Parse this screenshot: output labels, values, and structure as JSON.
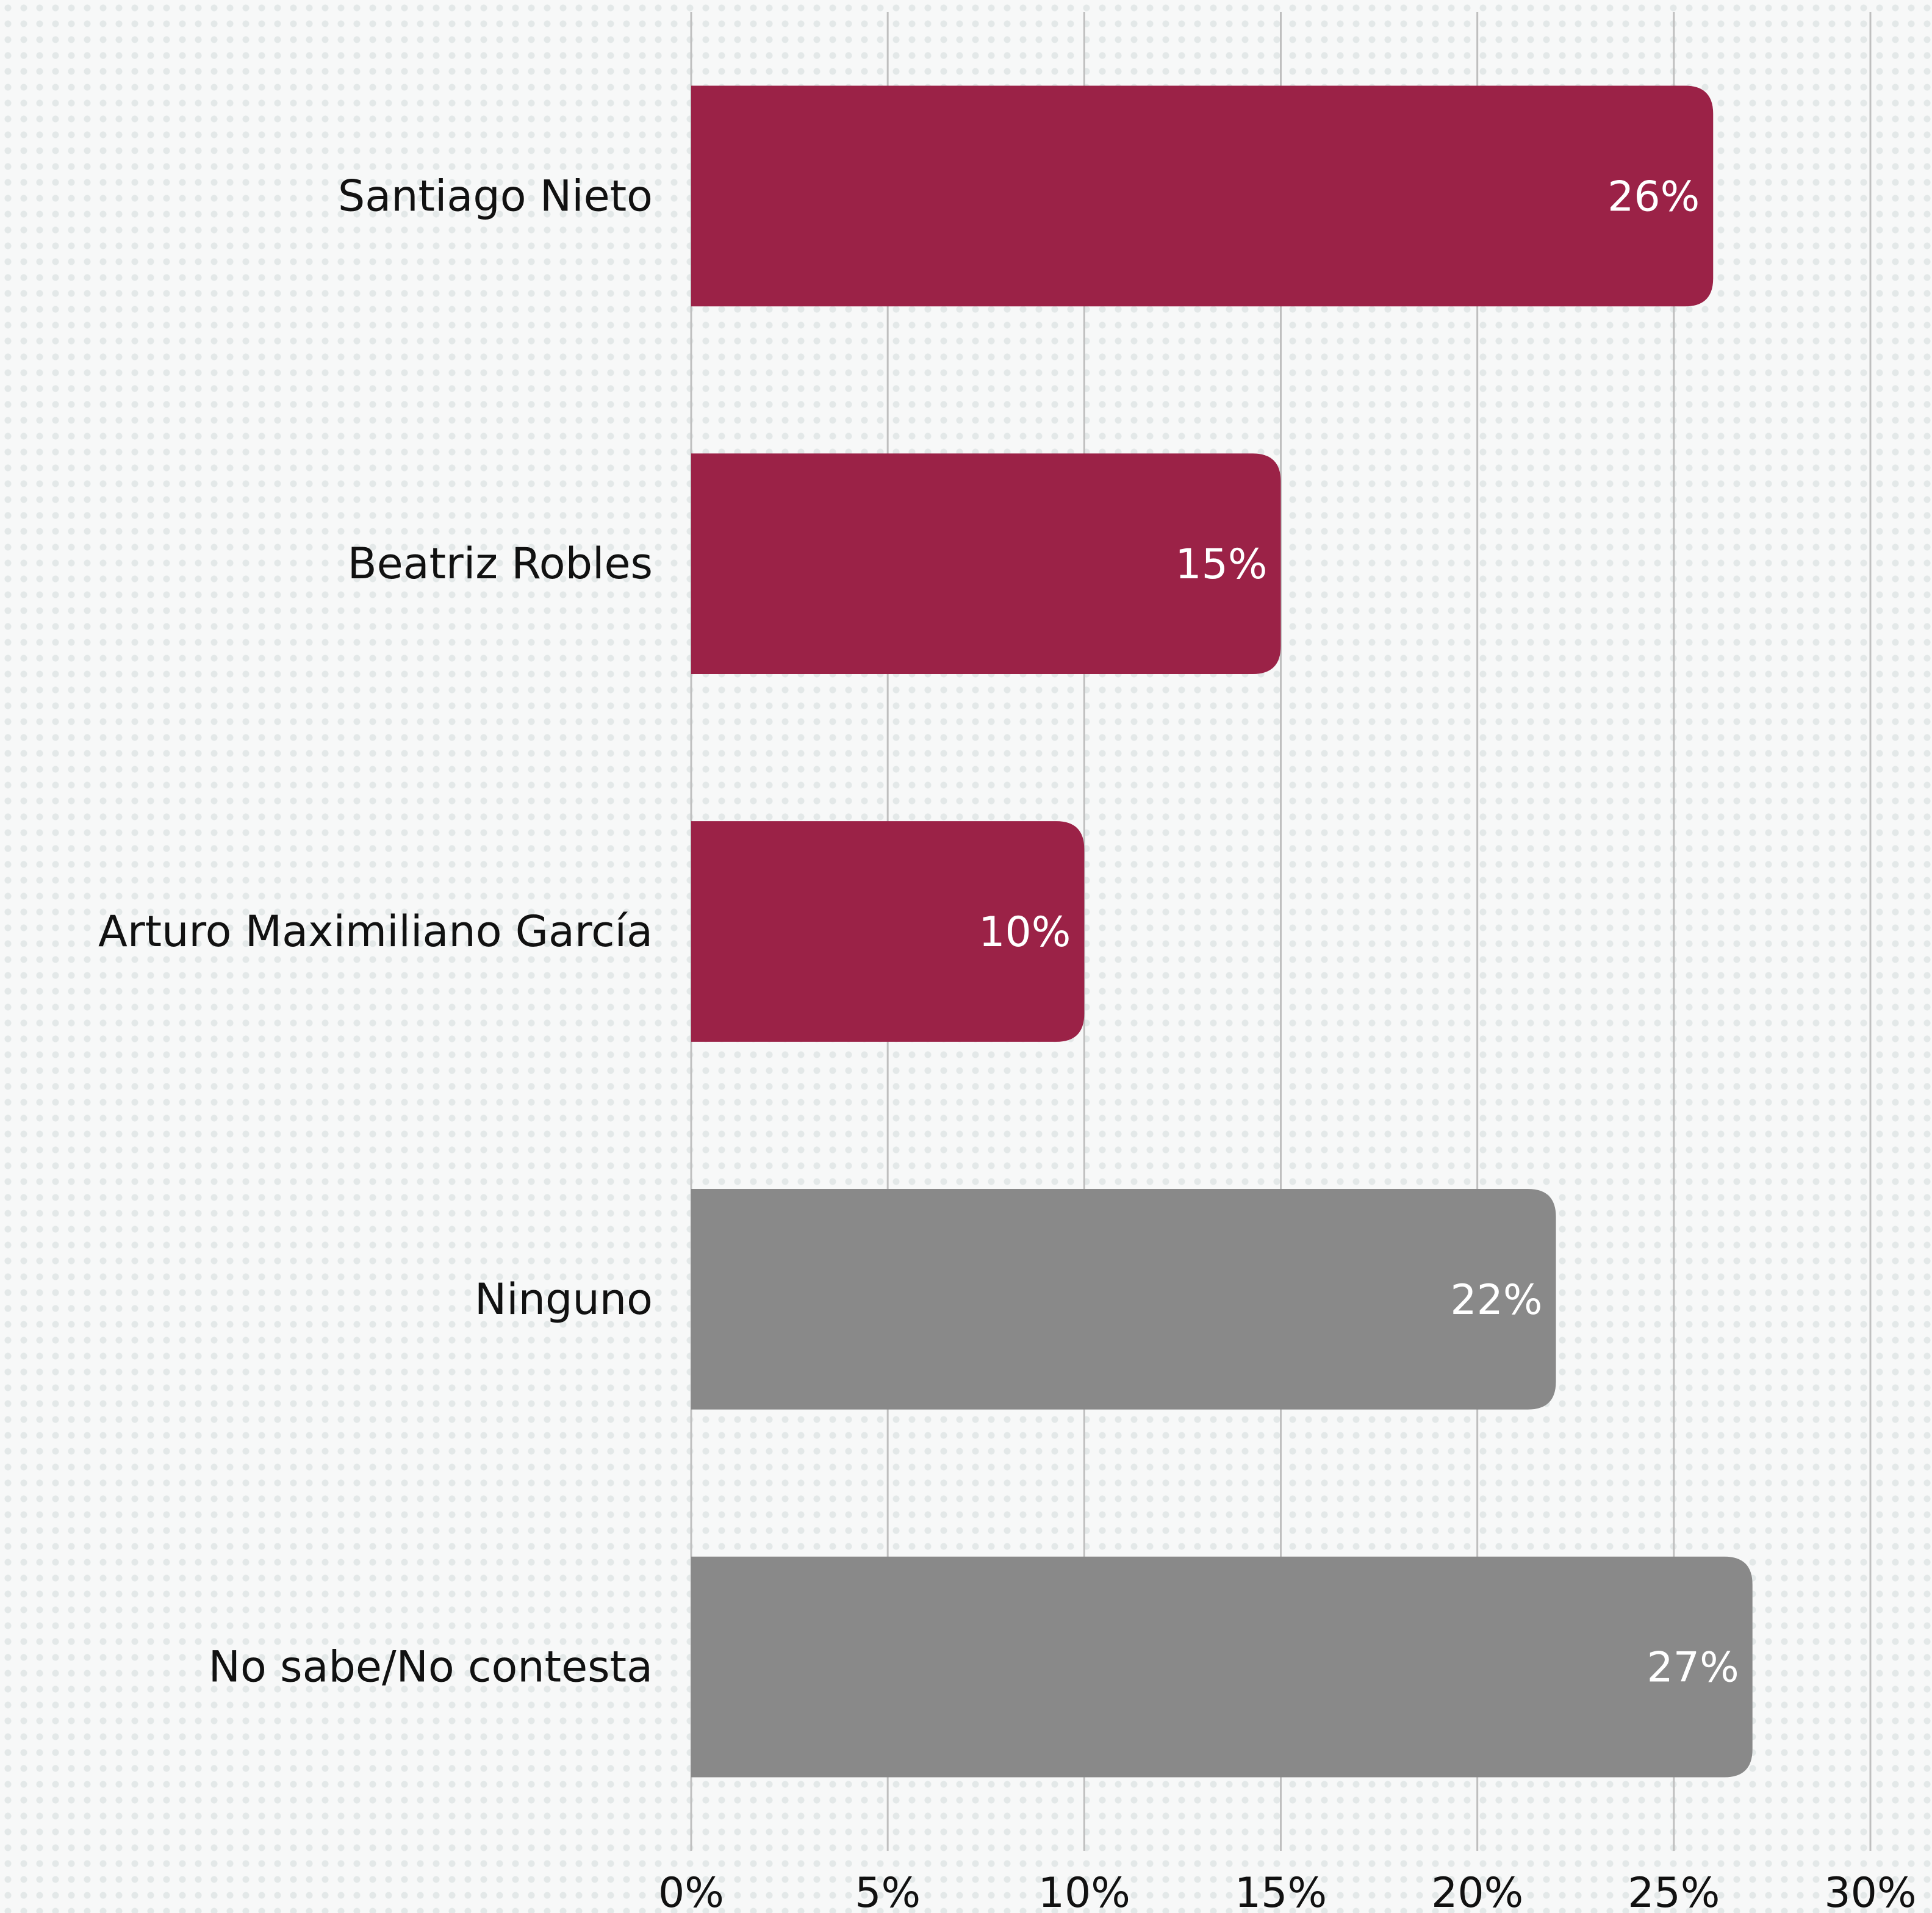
{
  "chart_data": {
    "type": "bar",
    "orientation": "horizontal",
    "title": "",
    "xlabel": "",
    "ylabel": "",
    "categories": [
      "Santiago Nieto",
      "Beatriz Robles",
      "Arturo Maximiliano García",
      "Ninguno",
      "No sabe/No contesta"
    ],
    "values": [
      26,
      15,
      10,
      22,
      27
    ],
    "value_labels": [
      "26%",
      "15%",
      "10%",
      "22%",
      "27%"
    ],
    "bar_colors": [
      "#9b2247",
      "#9b2247",
      "#9b2247",
      "#898989",
      "#898989"
    ],
    "xlim": [
      0,
      30
    ],
    "x_ticks": [
      0,
      5,
      10,
      15,
      20,
      25,
      30
    ],
    "x_tick_labels": [
      "0%",
      "5%",
      "10%",
      "15%",
      "20%",
      "25%",
      "30%"
    ],
    "grid": true,
    "legend": "none"
  }
}
